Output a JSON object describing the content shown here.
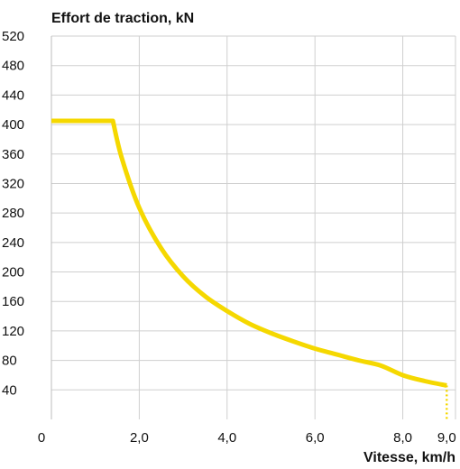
{
  "chart_data": {
    "type": "line",
    "title": "Effort de traction, kN",
    "xlabel": "Vitesse, km/h",
    "ylabel": "Effort de traction, kN",
    "xlim": [
      0,
      9.2
    ],
    "ylim": [
      0,
      520
    ],
    "grid": true,
    "x_ticks": [
      {
        "value": 0,
        "label": "0"
      },
      {
        "value": 2,
        "label": "2,0"
      },
      {
        "value": 4,
        "label": "4,0"
      },
      {
        "value": 6,
        "label": "6,0"
      },
      {
        "value": 8,
        "label": "8,0"
      },
      {
        "value": 9,
        "label": "9,0"
      }
    ],
    "y_ticks": [
      {
        "value": 40,
        "label": "40"
      },
      {
        "value": 80,
        "label": "80"
      },
      {
        "value": 120,
        "label": "120"
      },
      {
        "value": 160,
        "label": "160"
      },
      {
        "value": 200,
        "label": "200"
      },
      {
        "value": 240,
        "label": "240"
      },
      {
        "value": 280,
        "label": "280"
      },
      {
        "value": 320,
        "label": "320"
      },
      {
        "value": 360,
        "label": "360"
      },
      {
        "value": 400,
        "label": "400"
      },
      {
        "value": 440,
        "label": "440"
      },
      {
        "value": 480,
        "label": "480"
      },
      {
        "value": 520,
        "label": "520"
      }
    ],
    "series": [
      {
        "color": "#f5d800",
        "x": [
          0,
          1.4,
          1.6,
          2.0,
          2.5,
          3.0,
          3.5,
          4.0,
          4.5,
          5.0,
          5.5,
          6.0,
          6.5,
          7.0,
          7.5,
          8.0,
          8.5,
          9.0
        ],
        "y": [
          405,
          405,
          355,
          287,
          232,
          194,
          167,
          147,
          130,
          117,
          106,
          96,
          88,
          80,
          73,
          60,
          52,
          46
        ]
      }
    ],
    "drop_line": {
      "x": 9.0,
      "y_from": 46,
      "y_to": 0,
      "style": "dotted",
      "color": "#f5d800"
    }
  }
}
